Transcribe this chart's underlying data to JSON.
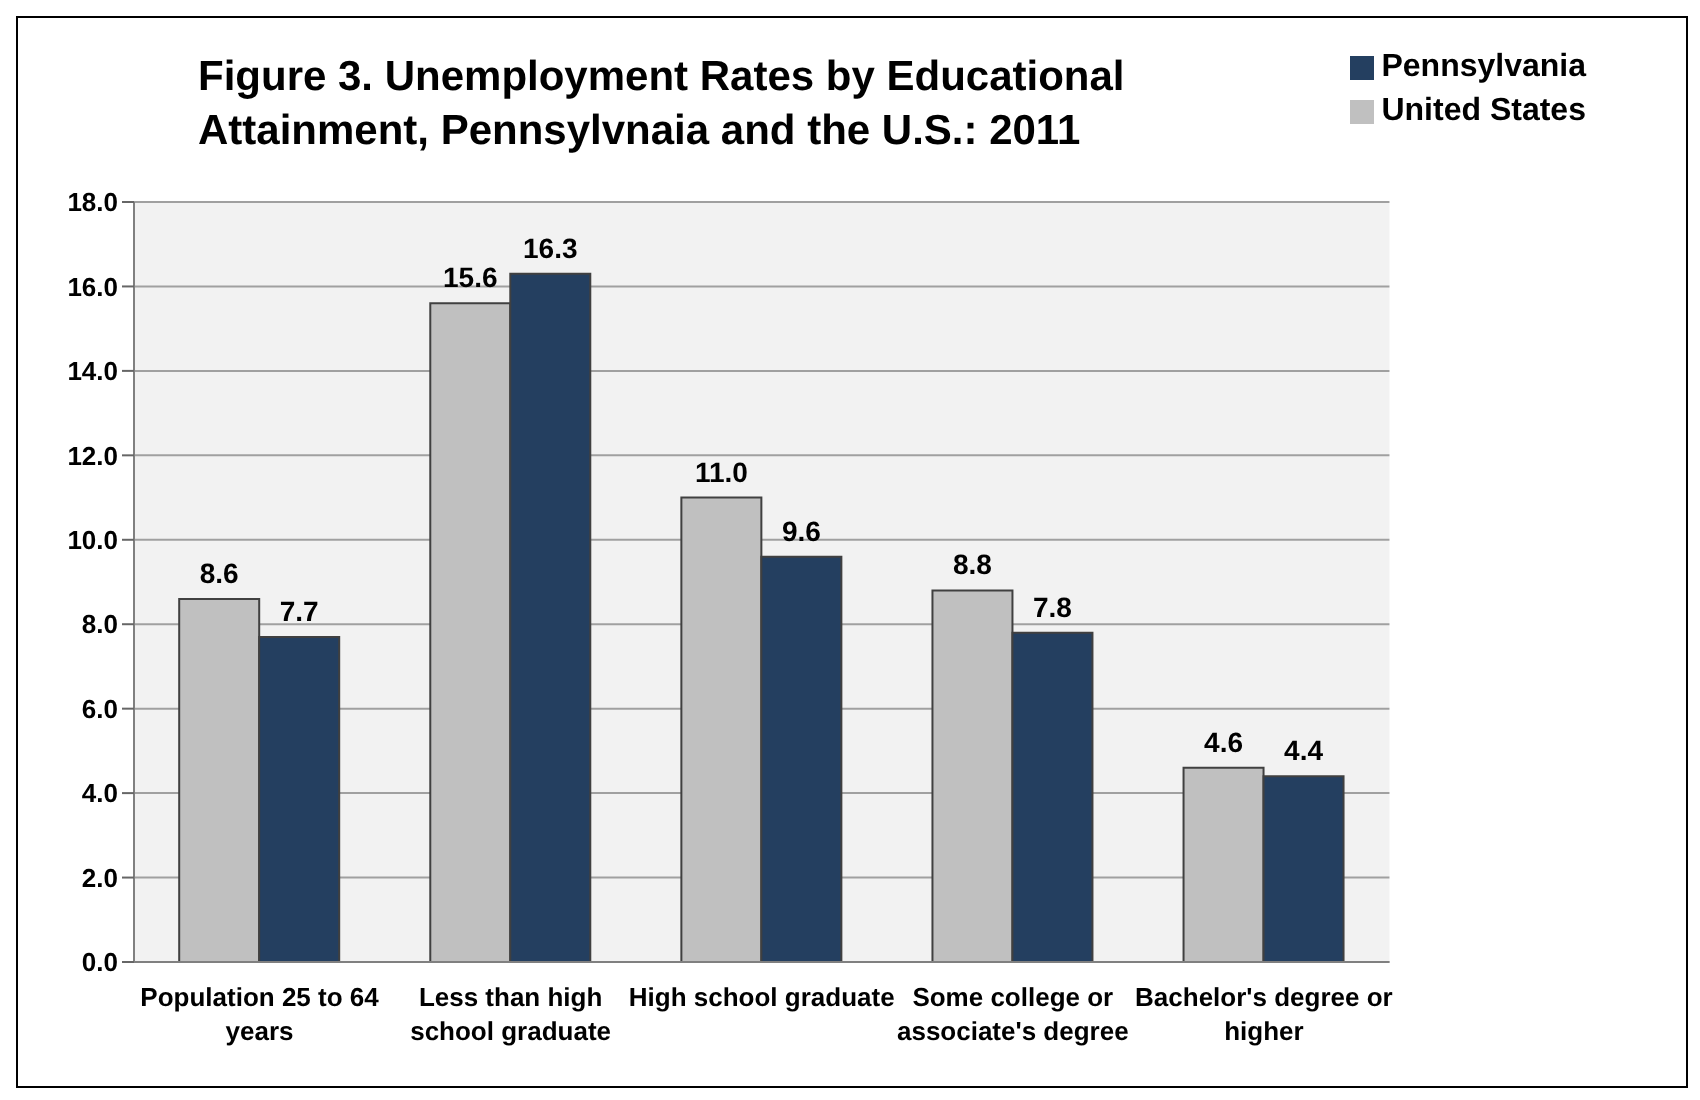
{
  "chart_data": {
    "type": "bar",
    "title": "Figure 3. Unemployment Rates by Educational Attainment, Pennsylvnaia and the U.S.: 2011",
    "categories": [
      "Population 25 to 64 years",
      "Less than high school graduate",
      "High school graduate",
      "Some college or associate's degree",
      "Bachelor's degree or higher"
    ],
    "series": [
      {
        "name": "United States",
        "color": "#c0c0c0",
        "values": [
          8.6,
          15.6,
          11.0,
          8.8,
          4.6
        ],
        "value_labels": [
          "8.6",
          "15.6",
          "11.0",
          "8.8",
          "4.6"
        ]
      },
      {
        "name": "Pennsylvania",
        "color": "#243f60",
        "values": [
          7.7,
          16.3,
          9.6,
          7.8,
          4.4
        ],
        "value_labels": [
          "7.7",
          "16.3",
          "9.6",
          "7.8",
          "4.4"
        ]
      }
    ],
    "ylim": [
      0,
      18
    ],
    "yticks": [
      {
        "value": 0,
        "label": "0.0"
      },
      {
        "value": 2,
        "label": "2.0"
      },
      {
        "value": 4,
        "label": "4.0"
      },
      {
        "value": 6,
        "label": "6.0"
      },
      {
        "value": 8,
        "label": "8.0"
      },
      {
        "value": 10,
        "label": "10.0"
      },
      {
        "value": 12,
        "label": "12.0"
      },
      {
        "value": 14,
        "label": "14.0"
      },
      {
        "value": 16,
        "label": "16.0"
      },
      {
        "value": 18,
        "label": "18.0"
      }
    ],
    "grid": "y",
    "legend": "top right"
  }
}
